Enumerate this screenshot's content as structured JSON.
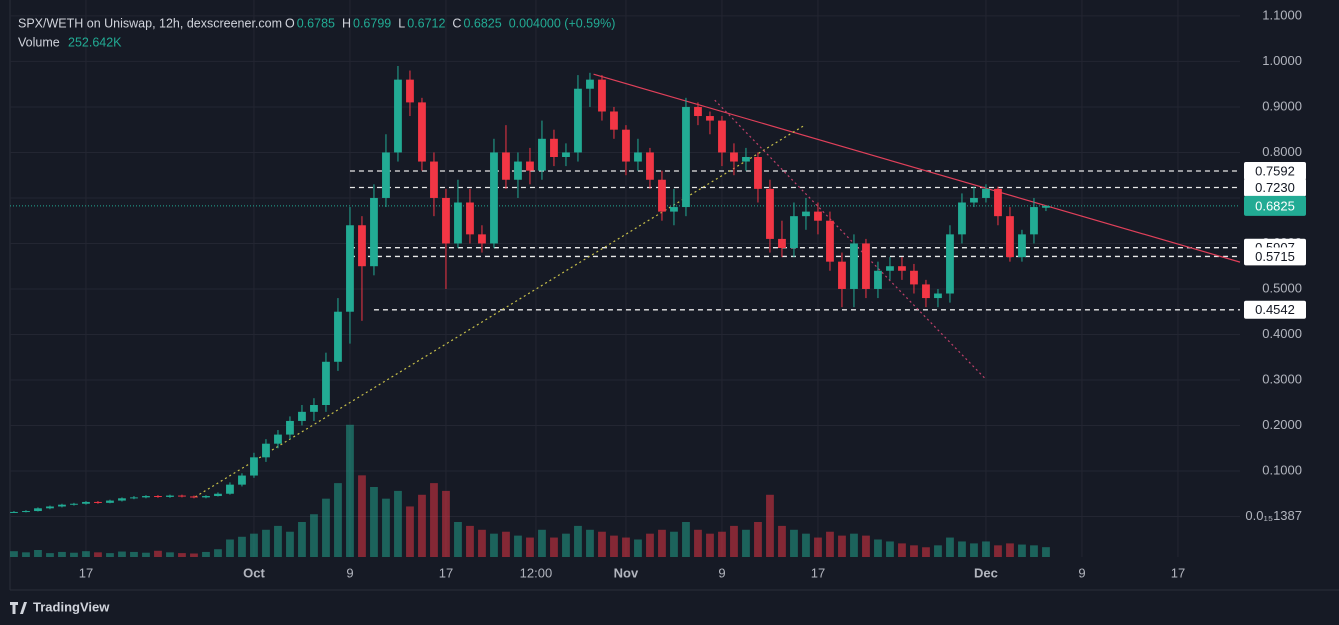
{
  "header": {
    "title": "SPX/WETH on Uniswap, 12h, dexscreener.com",
    "ohlc": [
      {
        "key": "O",
        "value": "0.6785"
      },
      {
        "key": "H",
        "value": "0.6799"
      },
      {
        "key": "L",
        "value": "0.6712"
      },
      {
        "key": "C",
        "value": "0.6825"
      }
    ],
    "change": "0.004000 (+0.59%)",
    "volume_label": "Volume",
    "volume_value": "252.642K"
  },
  "brand": "TradingView",
  "chart_data": {
    "type": "candlestick",
    "up_color": "#22ab94",
    "down_color": "#f23645",
    "grid": true,
    "x": [
      10,
      11,
      12,
      13,
      14,
      15,
      16,
      17,
      18,
      19,
      20,
      21,
      22,
      23,
      24,
      25,
      26,
      27,
      28,
      29,
      30,
      31,
      32,
      33,
      34,
      35,
      36,
      37,
      38,
      39,
      40,
      41,
      42,
      43,
      44,
      45,
      46,
      47,
      48,
      49,
      50,
      51,
      52,
      53,
      54,
      55,
      56,
      57,
      58,
      59,
      60,
      61,
      62,
      63,
      64,
      65,
      66,
      67,
      68,
      69,
      70,
      71,
      72,
      73,
      74,
      75,
      76,
      77,
      78,
      79,
      80,
      81,
      82,
      83,
      84,
      85,
      86,
      87,
      88,
      89,
      90,
      91,
      92,
      93,
      94,
      95,
      96
    ],
    "open": [
      0.009,
      0.01,
      0.012,
      0.018,
      0.022,
      0.026,
      0.028,
      0.032,
      0.03,
      0.035,
      0.04,
      0.042,
      0.045,
      0.043,
      0.046,
      0.044,
      0.042,
      0.045,
      0.05,
      0.07,
      0.09,
      0.13,
      0.16,
      0.18,
      0.21,
      0.23,
      0.245,
      0.34,
      0.45,
      0.64,
      0.55,
      0.7,
      0.8,
      0.96,
      0.91,
      0.78,
      0.7,
      0.6,
      0.69,
      0.62,
      0.6,
      0.8,
      0.74,
      0.78,
      0.76,
      0.83,
      0.79,
      0.8,
      0.94,
      0.96,
      0.89,
      0.85,
      0.78,
      0.8,
      0.74,
      0.67,
      0.68,
      0.9,
      0.88,
      0.87,
      0.8,
      0.78,
      0.79,
      0.72,
      0.61,
      0.59,
      0.66,
      0.67,
      0.65,
      0.56,
      0.5,
      0.6,
      0.5,
      0.54,
      0.55,
      0.54,
      0.51,
      0.48,
      0.49,
      0.62,
      0.69,
      0.7,
      0.72,
      0.66,
      0.57,
      0.62,
      0.6785
    ],
    "high": [
      0.012,
      0.014,
      0.02,
      0.024,
      0.028,
      0.03,
      0.034,
      0.034,
      0.037,
      0.042,
      0.045,
      0.047,
      0.047,
      0.048,
      0.048,
      0.046,
      0.047,
      0.053,
      0.075,
      0.095,
      0.14,
      0.17,
      0.19,
      0.22,
      0.245,
      0.26,
      0.36,
      0.48,
      0.68,
      0.66,
      0.73,
      0.84,
      0.99,
      0.98,
      0.92,
      0.8,
      0.72,
      0.74,
      0.72,
      0.64,
      0.83,
      0.86,
      0.8,
      0.81,
      0.87,
      0.85,
      0.82,
      0.97,
      0.975,
      0.97,
      0.9,
      0.86,
      0.83,
      0.81,
      0.76,
      0.72,
      0.92,
      0.91,
      0.89,
      0.88,
      0.82,
      0.81,
      0.8,
      0.74,
      0.65,
      0.69,
      0.7,
      0.69,
      0.67,
      0.58,
      0.62,
      0.61,
      0.56,
      0.57,
      0.57,
      0.555,
      0.52,
      0.5,
      0.64,
      0.71,
      0.725,
      0.73,
      0.725,
      0.68,
      0.63,
      0.7,
      0.6799
    ],
    "low": [
      0.008,
      0.009,
      0.011,
      0.016,
      0.02,
      0.024,
      0.026,
      0.028,
      0.029,
      0.033,
      0.038,
      0.04,
      0.041,
      0.041,
      0.042,
      0.04,
      0.04,
      0.044,
      0.048,
      0.066,
      0.085,
      0.12,
      0.15,
      0.17,
      0.2,
      0.21,
      0.23,
      0.32,
      0.38,
      0.43,
      0.53,
      0.68,
      0.78,
      0.88,
      0.76,
      0.66,
      0.5,
      0.59,
      0.6,
      0.58,
      0.59,
      0.72,
      0.7,
      0.73,
      0.74,
      0.77,
      0.77,
      0.78,
      0.9,
      0.87,
      0.83,
      0.75,
      0.76,
      0.72,
      0.65,
      0.64,
      0.66,
      0.86,
      0.84,
      0.77,
      0.75,
      0.76,
      0.69,
      0.58,
      0.57,
      0.57,
      0.63,
      0.62,
      0.54,
      0.46,
      0.46,
      0.48,
      0.48,
      0.52,
      0.52,
      0.49,
      0.46,
      0.46,
      0.47,
      0.6,
      0.68,
      0.69,
      0.64,
      0.56,
      0.56,
      0.6,
      0.6712
    ],
    "close": [
      0.01,
      0.012,
      0.018,
      0.022,
      0.026,
      0.028,
      0.032,
      0.03,
      0.035,
      0.04,
      0.042,
      0.045,
      0.043,
      0.046,
      0.044,
      0.042,
      0.045,
      0.05,
      0.07,
      0.09,
      0.13,
      0.16,
      0.18,
      0.21,
      0.23,
      0.245,
      0.34,
      0.45,
      0.64,
      0.55,
      0.7,
      0.8,
      0.96,
      0.91,
      0.78,
      0.7,
      0.6,
      0.69,
      0.62,
      0.6,
      0.8,
      0.74,
      0.78,
      0.76,
      0.83,
      0.79,
      0.8,
      0.94,
      0.96,
      0.89,
      0.85,
      0.78,
      0.8,
      0.74,
      0.67,
      0.68,
      0.9,
      0.88,
      0.87,
      0.8,
      0.78,
      0.79,
      0.72,
      0.61,
      0.59,
      0.66,
      0.67,
      0.65,
      0.56,
      0.5,
      0.6,
      0.5,
      0.54,
      0.55,
      0.54,
      0.51,
      0.48,
      0.49,
      0.62,
      0.69,
      0.7,
      0.72,
      0.66,
      0.57,
      0.62,
      0.68,
      0.6825
    ],
    "volume": [
      150000,
      120000,
      180000,
      100000,
      130000,
      110000,
      150000,
      120000,
      100000,
      140000,
      130000,
      110000,
      160000,
      120000,
      100000,
      90000,
      130000,
      200000,
      450000,
      520000,
      600000,
      700000,
      800000,
      650000,
      900000,
      1100000,
      1500000,
      1900000,
      3400000,
      2100000,
      1800000,
      1500000,
      1700000,
      1300000,
      1600000,
      1900000,
      1700000,
      900000,
      800000,
      700000,
      600000,
      650000,
      550000,
      500000,
      700000,
      500000,
      600000,
      800000,
      700000,
      650000,
      550000,
      500000,
      450000,
      600000,
      700000,
      650000,
      900000,
      700000,
      600000,
      650000,
      800000,
      700000,
      900000,
      1600000,
      800000,
      700000,
      600000,
      500000,
      650000,
      550000,
      600000,
      550000,
      450000,
      400000,
      350000,
      300000,
      250000,
      300000,
      500000,
      400000,
      350000,
      400000,
      300000,
      350000,
      320000,
      300000,
      252642
    ],
    "xlim": [
      9.67,
      112.17
    ],
    "xticks": [
      {
        "value": 16,
        "label": "17"
      },
      {
        "value": 30,
        "label": "Oct"
      },
      {
        "value": 38,
        "label": "9"
      },
      {
        "value": 46,
        "label": "17"
      },
      {
        "value": 53.5,
        "label": "12:00"
      },
      {
        "value": 61,
        "label": "Nov"
      },
      {
        "value": 69,
        "label": "9"
      },
      {
        "value": 77,
        "label": "17"
      },
      {
        "value": 91,
        "label": "Dec"
      },
      {
        "value": 99,
        "label": "9"
      },
      {
        "value": 107,
        "label": "17"
      }
    ],
    "ylim": [
      -0.089,
      1.135
    ],
    "yticks": [
      {
        "value": 0,
        "label": "0.0₁₅1387"
      },
      {
        "value": 0.1,
        "label": "0.1000"
      },
      {
        "value": 0.2,
        "label": "0.2000"
      },
      {
        "value": 0.3,
        "label": "0.3000"
      },
      {
        "value": 0.4,
        "label": "0.4000"
      },
      {
        "value": 0.5,
        "label": "0.5000"
      },
      {
        "value": 0.6,
        "label": "0.6000"
      },
      {
        "value": 0.7,
        "label": "0.7000"
      },
      {
        "value": 0.8,
        "label": "0.8000"
      },
      {
        "value": 0.9,
        "label": "0.9000"
      },
      {
        "value": 1.0,
        "label": "1.0000"
      },
      {
        "value": 1.1,
        "label": "1.1000"
      }
    ],
    "volume_ylim": [
      0,
      3600000
    ],
    "levels": [
      {
        "value": 0.7592,
        "start": 38
      },
      {
        "value": {
          "value": 0.723,
          "label": "0.7230"
        },
        "start": 38
      },
      {
        "value": 0.5907,
        "start": 38
      },
      {
        "value": 0.5715,
        "start": 38
      },
      {
        "value": 0.4542,
        "start": 40
      }
    ],
    "last_price": 0.6825,
    "last_price_color": "#22ab94",
    "trendlines": [
      {
        "color": "#e0405a",
        "dash": "",
        "points": [
          [
            58.3,
            0.972
          ],
          [
            112.17,
            0.559
          ]
        ]
      },
      {
        "color": "#c8c04a",
        "dash": "2 3",
        "points": [
          [
            25.1,
            0.043
          ],
          [
            75.9,
            0.86
          ]
        ]
      },
      {
        "color": "#c0406a",
        "dash": "2 3",
        "points": [
          [
            68.4,
            0.915
          ],
          [
            90.9,
            0.304
          ]
        ]
      }
    ]
  }
}
